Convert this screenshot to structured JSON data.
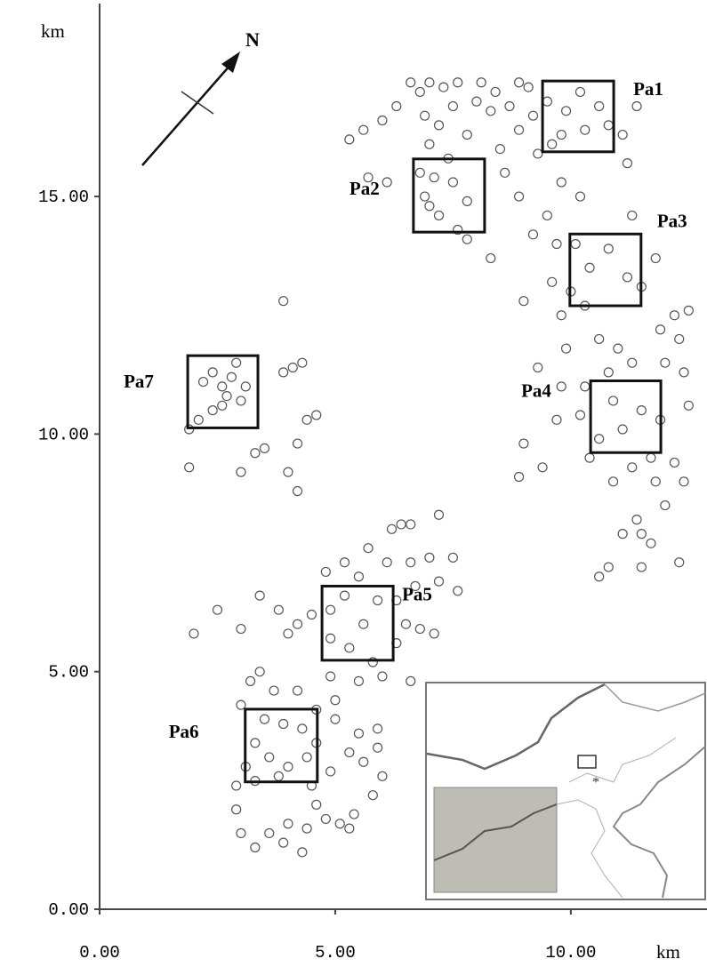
{
  "chart_data": {
    "type": "scatter",
    "x_label": "km",
    "y_label": "km",
    "north_label": "N",
    "xlim": [
      0,
      12.89
    ],
    "ylim": [
      0,
      19.06
    ],
    "xticks": [
      {
        "value": 0,
        "label": "0.00"
      },
      {
        "value": 5,
        "label": "5.00"
      },
      {
        "value": 10,
        "label": "10.00"
      }
    ],
    "yticks": [
      {
        "value": 0,
        "label": "0.00"
      },
      {
        "value": 5,
        "label": "5.00"
      },
      {
        "value": 10,
        "label": "10.00"
      },
      {
        "value": 15,
        "label": "15.00"
      }
    ],
    "color": "#555555",
    "x": [
      6.6,
      6.8,
      7.0,
      7.3,
      7.6,
      8.1,
      8.4,
      8.9,
      9.1,
      6.3,
      6.0,
      5.6,
      5.3,
      6.9,
      7.2,
      7.5,
      8.0,
      8.3,
      8.7,
      9.2,
      9.5,
      9.9,
      10.2,
      10.6,
      10.8,
      9.8,
      10.3,
      9.6,
      11.1,
      11.4,
      11.2,
      7.0,
      7.4,
      7.8,
      8.5,
      8.9,
      9.3,
      7.1,
      6.9,
      7.5,
      7.8,
      7.2,
      7.6,
      7.0,
      6.8,
      5.7,
      6.1,
      8.6,
      8.9,
      9.5,
      9.8,
      10.2,
      7.8,
      8.3,
      9.2,
      9.7,
      10.1,
      10.4,
      10.8,
      11.2,
      11.5,
      10.0,
      10.3,
      9.6,
      9.8,
      9.0,
      11.3,
      11.8,
      12.2,
      12.5,
      12.3,
      11.9,
      10.6,
      11.0,
      11.3,
      10.8,
      10.3,
      10.9,
      11.5,
      11.1,
      10.6,
      11.7,
      11.3,
      11.8,
      12.2,
      12.4,
      12.5,
      12.4,
      12.0,
      10.4,
      10.2,
      11.9,
      10.9,
      11.4,
      11.5,
      11.7,
      11.1,
      10.8,
      10.6,
      11.5,
      12.3,
      12.0,
      9.0,
      8.9,
      9.4,
      9.8,
      9.3,
      9.7,
      9.9,
      2.2,
      2.4,
      2.6,
      2.8,
      2.9,
      3.1,
      2.7,
      2.4,
      2.1,
      1.9,
      2.6,
      3.0,
      3.9,
      3.9,
      4.3,
      4.1,
      4.4,
      4.6,
      4.2,
      3.5,
      3.3,
      4.0,
      4.2,
      3.0,
      1.9,
      6.4,
      6.6,
      7.2,
      6.2,
      5.7,
      5.2,
      4.8,
      5.5,
      6.1,
      6.6,
      7.0,
      7.5,
      7.2,
      6.7,
      6.3,
      5.9,
      5.2,
      4.9,
      5.6,
      4.5,
      4.2,
      4.9,
      5.3,
      5.8,
      6.3,
      6.5,
      6.8,
      7.1,
      6.0,
      5.5,
      4.9,
      6.6,
      7.6,
      4.0,
      3.8,
      3.4,
      3.0,
      2.5,
      2.0,
      5.0,
      3.4,
      3.2,
      3.7,
      3.0,
      3.5,
      3.9,
      4.3,
      4.6,
      3.3,
      3.6,
      4.0,
      4.4,
      3.1,
      2.9,
      3.3,
      3.8,
      4.5,
      4.9,
      5.3,
      5.6,
      5.9,
      5.5,
      6.0,
      5.8,
      5.4,
      5.1,
      5.3,
      4.8,
      4.4,
      4.0,
      3.6,
      3.3,
      3.0,
      2.9,
      4.6,
      5.0,
      4.2,
      5.9,
      4.6,
      3.9,
      4.3
    ],
    "values": [
      17.4,
      17.2,
      17.4,
      17.3,
      17.4,
      17.4,
      17.2,
      17.4,
      17.3,
      16.9,
      16.6,
      16.4,
      16.2,
      16.7,
      16.5,
      16.9,
      17.0,
      16.8,
      16.9,
      16.7,
      17.0,
      16.8,
      17.2,
      16.9,
      16.5,
      16.3,
      16.4,
      16.1,
      16.3,
      16.9,
      15.7,
      16.1,
      15.8,
      16.3,
      16.0,
      16.4,
      15.9,
      15.4,
      15.0,
      15.3,
      14.9,
      14.6,
      14.3,
      14.8,
      15.5,
      15.4,
      15.3,
      15.5,
      15.0,
      14.6,
      15.3,
      15.0,
      14.1,
      13.7,
      14.2,
      14.0,
      14.0,
      13.5,
      13.9,
      13.3,
      13.1,
      13.0,
      12.7,
      13.2,
      12.5,
      12.8,
      14.6,
      13.7,
      12.5,
      12.6,
      12.0,
      12.2,
      12.0,
      11.8,
      11.5,
      11.3,
      11.0,
      10.7,
      10.5,
      10.1,
      9.9,
      9.5,
      9.3,
      9.0,
      9.4,
      9.0,
      10.6,
      11.3,
      11.5,
      9.5,
      10.4,
      10.3,
      9.0,
      8.2,
      7.9,
      7.7,
      7.9,
      7.2,
      7.0,
      7.2,
      7.3,
      8.5,
      9.8,
      9.1,
      9.3,
      11.0,
      11.4,
      10.3,
      11.8,
      11.1,
      11.3,
      11.0,
      11.2,
      11.5,
      11.0,
      10.8,
      10.5,
      10.3,
      10.1,
      10.6,
      10.7,
      12.8,
      11.3,
      11.5,
      11.4,
      10.3,
      10.4,
      9.8,
      9.7,
      9.6,
      9.2,
      8.8,
      9.2,
      9.3,
      8.1,
      8.1,
      8.3,
      8.0,
      7.6,
      7.3,
      7.1,
      7.0,
      7.3,
      7.3,
      7.4,
      7.4,
      6.9,
      6.8,
      6.5,
      6.5,
      6.6,
      6.3,
      6.0,
      6.2,
      6.0,
      5.7,
      5.5,
      5.2,
      5.6,
      6.0,
      5.9,
      5.8,
      4.9,
      4.8,
      4.9,
      4.8,
      6.7,
      5.8,
      6.3,
      6.6,
      5.9,
      6.3,
      5.8,
      4.4,
      5.0,
      4.8,
      4.6,
      4.3,
      4.0,
      3.9,
      3.8,
      3.5,
      3.5,
      3.2,
      3.0,
      3.2,
      3.0,
      2.6,
      2.7,
      2.8,
      2.6,
      2.9,
      3.3,
      3.1,
      3.4,
      3.7,
      2.8,
      2.4,
      2.0,
      1.8,
      1.7,
      1.9,
      1.7,
      1.8,
      1.6,
      1.3,
      1.6,
      2.1,
      4.2,
      4.0,
      4.6,
      3.8,
      2.2,
      1.4,
      1.2
    ],
    "regions": [
      {
        "label": "Pa1",
        "x": [
          9.4,
          10.91
        ],
        "y": [
          15.94,
          17.43
        ]
      },
      {
        "label": "Pa2",
        "x": [
          6.66,
          8.17
        ],
        "y": [
          14.25,
          15.79
        ]
      },
      {
        "label": "Pa3",
        "x": [
          9.98,
          11.49
        ],
        "y": [
          12.7,
          14.21
        ]
      },
      {
        "label": "Pa4",
        "x": [
          10.42,
          11.91
        ],
        "y": [
          9.61,
          11.12
        ]
      },
      {
        "label": "Pa5",
        "x": [
          4.72,
          6.23
        ],
        "y": [
          5.24,
          6.8
        ]
      },
      {
        "label": "Pa6",
        "x": [
          3.09,
          4.62
        ],
        "y": [
          2.68,
          4.21
        ]
      },
      {
        "label": "Pa7",
        "x": [
          1.87,
          3.36
        ],
        "y": [
          10.13,
          11.65
        ]
      }
    ]
  }
}
